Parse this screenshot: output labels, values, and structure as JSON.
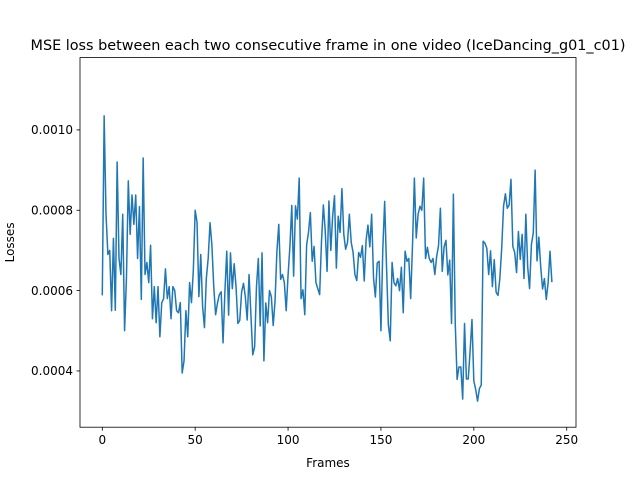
{
  "chart_data": {
    "type": "line",
    "title": "MSE loss between each two consecutive frame in one video (IceDancing_g01_c01)",
    "xlabel": "Frames",
    "ylabel": "Losses",
    "xlim": [
      -12,
      255
    ],
    "ylim": [
      0.00026,
      0.00118
    ],
    "xticks": [
      0,
      50,
      100,
      150,
      200,
      250
    ],
    "yticks": [
      0.0004,
      0.0006,
      0.0008,
      0.001
    ],
    "ytick_labels": [
      "0.0004",
      "0.0006",
      "0.0008",
      "0.0010"
    ],
    "grid": false,
    "color": "#1f77b4",
    "series": [
      {
        "values": [
          0.00059,
          0.001035,
          0.00079,
          0.00069,
          0.0007,
          0.00055,
          0.00073,
          0.000551,
          0.00092,
          0.00068,
          0.00064,
          0.00079,
          0.0005,
          0.00063,
          0.000873,
          0.00074,
          0.000838,
          0.000765,
          0.000838,
          0.00068,
          0.000809,
          0.000578,
          0.00093,
          0.00064,
          0.00067,
          0.00062,
          0.000713,
          0.00053,
          0.00061,
          0.00052,
          0.00061,
          0.000485,
          0.00057,
          0.00058,
          0.000654,
          0.00058,
          0.00061,
          0.00053,
          0.00061,
          0.0006,
          0.00055,
          0.000545,
          0.00057,
          0.000395,
          0.000425,
          0.00055,
          0.000485,
          0.00062,
          0.00057,
          0.00065,
          0.0008,
          0.00077,
          0.000585,
          0.00069,
          0.00056,
          0.000508,
          0.00063,
          0.00068,
          0.000769,
          0.000713,
          0.00061,
          0.00054,
          0.000569,
          0.00059,
          0.000597,
          0.00047,
          0.000597,
          0.000698,
          0.000539,
          0.000694,
          0.000605,
          0.000667,
          0.00061,
          0.000518,
          0.000526,
          0.000597,
          0.000618,
          0.000585,
          0.000527,
          0.00064,
          0.00054,
          0.00044,
          0.00046,
          0.00061,
          0.00068,
          0.000512,
          0.000694,
          0.000425,
          0.000569,
          0.00052,
          0.0006,
          0.000585,
          0.000513,
          0.000575,
          0.000698,
          0.000765,
          0.000628,
          0.00064,
          0.00062,
          0.00055,
          0.000638,
          0.00071,
          0.000812,
          0.000636,
          0.000811,
          0.000778,
          0.00088,
          0.00058,
          0.000602,
          0.00054,
          0.000714,
          0.000745,
          0.000794,
          0.000673,
          0.00071,
          0.00062,
          0.000605,
          0.00059,
          0.000723,
          0.000813,
          0.00075,
          0.000648,
          0.000823,
          0.0007,
          0.000785,
          0.000836,
          0.000656,
          0.000785,
          0.000745,
          0.000854,
          0.00074,
          0.000703,
          0.00072,
          0.00079,
          0.00072,
          0.000695,
          0.00064,
          0.000625,
          0.000695,
          0.000683,
          0.000712,
          0.000624,
          0.000725,
          0.000763,
          0.000709,
          0.00079,
          0.000632,
          0.000584,
          0.000669,
          0.000673,
          0.0005,
          0.000703,
          0.000822,
          0.00066,
          0.000515,
          0.000475,
          0.00067,
          0.00062,
          0.000612,
          0.00063,
          0.0006,
          0.000658,
          0.000545,
          0.000698,
          0.000673,
          0.00068,
          0.00058,
          0.000714,
          0.00088,
          0.000731,
          0.00079,
          0.00081,
          0.0008,
          0.00088,
          0.00068,
          0.000708,
          0.00068,
          0.00067,
          0.00068,
          0.00064,
          0.000685,
          0.000712,
          0.000805,
          0.000648,
          0.000709,
          0.000725,
          0.000639,
          0.000676,
          0.000518,
          0.00084,
          0.000518,
          0.000379,
          0.00041,
          0.00041,
          0.00033,
          0.000518,
          0.00038,
          0.00038,
          0.00045,
          0.000528,
          0.000375,
          0.000354,
          0.000325,
          0.000356,
          0.000365,
          0.000723,
          0.000718,
          0.000705,
          0.00064,
          0.000699,
          0.00061,
          0.000677,
          0.000596,
          0.000588,
          0.00063,
          0.000705,
          0.00081,
          0.000841,
          0.000805,
          0.000813,
          0.000877,
          0.00071,
          0.000695,
          0.000645,
          0.000747,
          0.000678,
          0.00074,
          0.00063,
          0.00079,
          0.000659,
          0.000605,
          0.000715,
          0.000743,
          0.0009,
          0.000674,
          0.000733,
          0.00066,
          0.000604,
          0.00063,
          0.000578,
          0.00062,
          0.000698,
          0.000623
        ]
      }
    ]
  }
}
